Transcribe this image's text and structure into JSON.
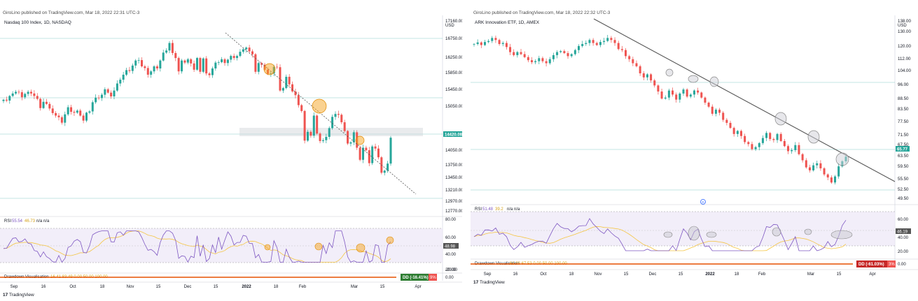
{
  "colors": {
    "up": "#26a69a",
    "down": "#ef5350",
    "rsi": "#7e57c2",
    "rsi_ma": "#f5c542",
    "rsi_band": "#ede7f6",
    "grid": "#d7d9df",
    "trend": "#555555",
    "accent_price": "#26a69a"
  },
  "left": {
    "publisher": "GiroLino published on TradingView.com, Mar 18, 2022 22:31 UTC-3",
    "symbol": "Nasdaq 100 Index, 1D, NASDAQ",
    "currency": "USD",
    "rsi_label": "RSI",
    "rsi_values": "55.54",
    "rsi_ma_value": "46.73",
    "rsi_na": "n/a  n/a",
    "rsi_last": "48.98",
    "dd_label": "Drawdown Visualisation",
    "dd_values": "16.41  83.49  0.00  50.00  100.00",
    "dd_badge": "DD (-16.41%)",
    "dd_badge_tail": "9%",
    "price_badge": "14420.08",
    "brand": "TradingView",
    "chart_data": {
      "type": "candlestick",
      "y_ticks": [
        "17160.00",
        "16750.00",
        "16250.00",
        "15850.00",
        "15450.00",
        "15050.00",
        "14420.08",
        "14050.00",
        "13750.00",
        "13450.00",
        "13210.00",
        "12970.00",
        "12770.00"
      ],
      "x_ticks": [
        "Sep",
        "16",
        "Oct",
        "18",
        "Nov",
        "15",
        "Dec",
        "15",
        "2022",
        "18",
        "Feb",
        "Mar",
        "15",
        "Apr"
      ],
      "rsi_ticks": [
        "80.00",
        "60.00",
        "40.00",
        "20.00"
      ],
      "dd_ticks": [
        "0.00",
        "-20.00"
      ],
      "last_price": 14420.08,
      "close": [
        15330,
        15310,
        15420,
        15480,
        15520,
        15510,
        15390,
        15470,
        15520,
        15480,
        15420,
        15350,
        15130,
        15280,
        15230,
        15120,
        15010,
        14950,
        14910,
        14780,
        14980,
        15150,
        15040,
        15020,
        15070,
        14950,
        14830,
        15020,
        15050,
        15270,
        15380,
        15370,
        15450,
        15580,
        15500,
        15410,
        15550,
        15720,
        15810,
        15930,
        16040,
        16020,
        16150,
        16270,
        16280,
        16130,
        16090,
        15930,
        16010,
        16130,
        16080,
        16270,
        16460,
        16510,
        16690,
        16450,
        16330,
        16010,
        16270,
        16220,
        16300,
        16200,
        16050,
        16330,
        16000,
        16320,
        15960,
        15920,
        16080,
        16220,
        16230,
        16300,
        16210,
        16290,
        16380,
        16330,
        16380,
        16480,
        16540,
        16580,
        16490,
        16420,
        16000,
        16210,
        16170,
        16050,
        15950,
        15960,
        16120,
        16110,
        15550,
        15610,
        15880,
        15700,
        15530,
        15440,
        15200,
        15060,
        14350,
        14560,
        14470,
        14950,
        14520,
        14340,
        14360,
        14440,
        14650,
        14920,
        14990,
        14970,
        14790,
        14580,
        14280,
        14310,
        14550,
        14180,
        13890,
        14180,
        14120,
        13810,
        14210,
        14160,
        13950,
        13580,
        13630,
        13800,
        14420
      ]
    }
  },
  "right": {
    "publisher": "GiroLino published on TradingView.com, Mar 18, 2022 22:32 UTC-3",
    "symbol": "ARK Innovation ETF, 1D, AMEX",
    "currency": "USD",
    "rsi_label": "RSI",
    "rsi_values": "51.48",
    "rsi_ma_value": "39.2",
    "rsi_na": "n/a  n/a",
    "rsi_last": "46.19",
    "dd_label": "Drawdown Visualisation",
    "dd_values": "61.03  67.53  0.00  50.00  100.00",
    "dd_badge": "DD (-61.03%)",
    "dd_badge_tail": "3%",
    "price_badge": "65.77",
    "event_marker": "D",
    "brand": "TradingView",
    "chart_data": {
      "type": "candlestick",
      "y_ticks": [
        "138.00",
        "130.00",
        "120.00",
        "112.00",
        "104.00",
        "96.00",
        "88.50",
        "83.50",
        "77.50",
        "71.50",
        "67.50",
        "65.77",
        "63.50",
        "59.50",
        "55.50",
        "52.50",
        "49.50"
      ],
      "x_ticks": [
        "Sep",
        "16",
        "Oct",
        "18",
        "Nov",
        "15",
        "Dec",
        "15",
        "2022",
        "18",
        "Feb",
        "Mar",
        "15",
        "Apr"
      ],
      "rsi_ticks": [
        "60.00",
        "46.19",
        "40.00",
        "20.00"
      ],
      "dd_ticks": [
        "0.00"
      ],
      "last_price": 65.77,
      "close": [
        121.5,
        122.3,
        121.0,
        122.5,
        123.0,
        124.5,
        123.5,
        121.5,
        122.0,
        120.0,
        117.5,
        116.0,
        117.5,
        116.5,
        115.0,
        113.5,
        112.5,
        113.0,
        114.5,
        113.0,
        112.0,
        114.0,
        116.0,
        117.5,
        118.0,
        117.0,
        115.5,
        116.5,
        118.5,
        120.5,
        121.5,
        122.0,
        123.5,
        122.0,
        121.0,
        122.5,
        123.0,
        124.5,
        123.5,
        122.0,
        119.0,
        118.5,
        115.5,
        114.0,
        112.0,
        110.5,
        107.0,
        105.0,
        106.5,
        103.5,
        101.0,
        98.0,
        94.5,
        95.0,
        98.5,
        96.5,
        94.0,
        97.0,
        99.0,
        95.5,
        96.5,
        98.5,
        97.5,
        95.0,
        92.5,
        90.5,
        87.0,
        89.0,
        87.5,
        84.0,
        82.5,
        80.0,
        77.0,
        78.5,
        76.0,
        73.0,
        72.0,
        69.5,
        70.5,
        72.5,
        75.0,
        77.5,
        74.5,
        74.0,
        77.0,
        73.5,
        71.0,
        68.5,
        69.0,
        71.5,
        67.0,
        64.0,
        60.5,
        59.0,
        61.5,
        62.5,
        60.0,
        57.0,
        55.5,
        53.0,
        56.0,
        61.0,
        63.5,
        65.77
      ]
    }
  }
}
